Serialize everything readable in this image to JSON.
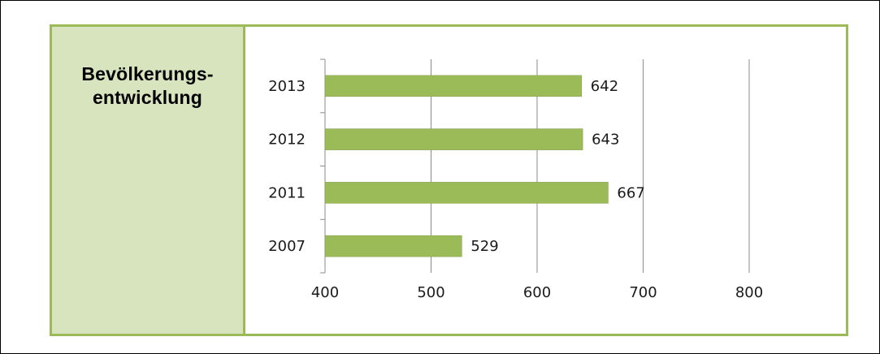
{
  "sidebar": {
    "title_line1": "Bevölkerungs-",
    "title_line2": "entwicklung"
  },
  "colors": {
    "bar": "#9bbb59",
    "bar_stroke": "#7f9a48",
    "panel_border": "#9bbb59",
    "sidebar_bg": "#d7e4bd",
    "grid": "#8c8c8c",
    "axis": "#8c8c8c",
    "text": "#1a1a1a"
  },
  "chart_data": {
    "type": "bar",
    "orientation": "horizontal",
    "categories": [
      "2013",
      "2012",
      "2011",
      "2007"
    ],
    "values": [
      642,
      643,
      667,
      529
    ],
    "data_labels": [
      "642",
      "643",
      "667",
      "529"
    ],
    "xlim": [
      400,
      800
    ],
    "xticks": [
      400,
      500,
      600,
      700,
      800
    ],
    "xtick_labels": [
      "400",
      "500",
      "600",
      "700",
      "800"
    ],
    "grid": "vertical",
    "legend": "none",
    "title": "",
    "xlabel": "",
    "ylabel": ""
  }
}
